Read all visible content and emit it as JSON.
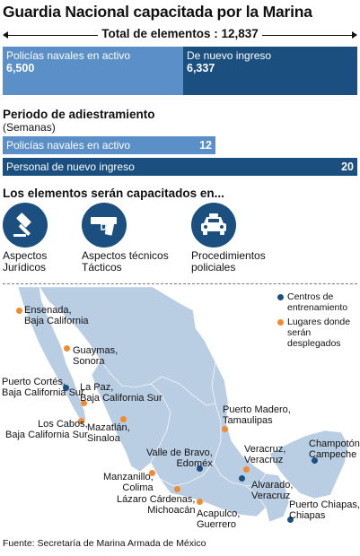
{
  "title": "Guardia Nacional capacitada por la Marina",
  "total": {
    "label": "Total de elementos : 12,837"
  },
  "composition": {
    "navales_label": "Policías navales en activo",
    "navales_value": "6,500",
    "nuevo_label": "De nuevo ingreso",
    "nuevo_value": "6,337"
  },
  "training": {
    "title": "Periodo de adiestramiento",
    "subtitle": "(Semanas)",
    "bars": [
      {
        "label": "Policías navales en activo",
        "value": "12",
        "weeks": 12
      },
      {
        "label": "Personal de nuevo ingreso",
        "value": "20",
        "weeks": 20
      }
    ]
  },
  "capacitacion": {
    "title": "Los elementos serán capacitados en...",
    "items": [
      {
        "line1": "Aspectos",
        "line2": "Jurídicos",
        "icon": "gavel-icon"
      },
      {
        "line1": "Aspectos técnicos",
        "line2": "Tácticos",
        "icon": "pistol-icon"
      },
      {
        "line1": "Procedimientos",
        "line2": "policiales",
        "icon": "police-car-icon"
      }
    ]
  },
  "legend": {
    "centros": "Centros de entrenamiento",
    "lugares": "Lugares donde serán desplegados"
  },
  "map": {
    "ensenada": "Ensenada,\nBaja California",
    "guaymas": "Guaymas,\nSonora",
    "puerto_cortes": "Puerto Cortés,\nBaja California Sur",
    "la_paz": "La Paz,\nBaja California Sur",
    "los_cabos": "Los Cabos,\nBaja California Sur",
    "mazatlan": "Mazatlán,\nSinaloa",
    "puerto_madero": "Puerto Madero,\nTamaulipas",
    "valle_bravo": "Valle de Bravo,\nEdoméx",
    "veracruz": "Veracruz,\nVeracruz",
    "champoton": "Champotón,\nCampeche",
    "manzanillo": "Manzanillo,\nColima",
    "alvarado": "Alvarado,\nVeracruz",
    "lazaro": "Lázaro Cárdenas,\nMichoacán",
    "acapulco": "Acapulco,\nGuerrero",
    "puerto_chiapas": "Puerto Chiapas,\nChiapas"
  },
  "source": "Fuente: Secretaría de Marina Armada de México",
  "colors": {
    "light_blue": "#5b8fc8",
    "dark_blue": "#1a4f80",
    "orange": "#f28b30",
    "map_fill": "#b9cde3"
  }
}
